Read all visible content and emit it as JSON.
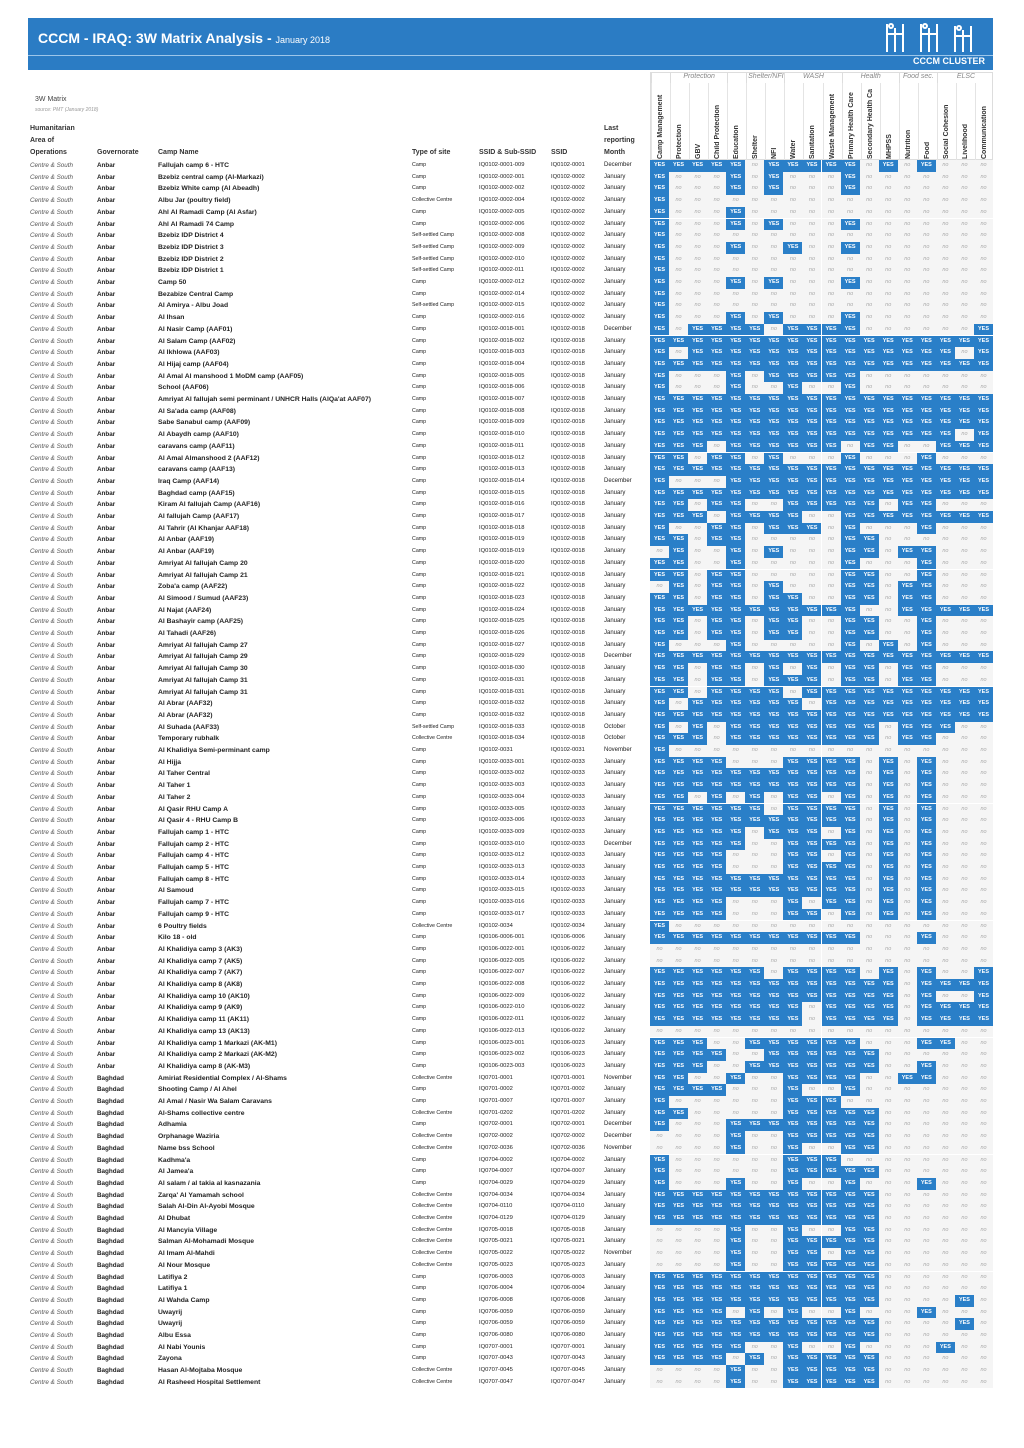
{
  "header": {
    "title": "CCCM - IRAQ: 3W Matrix Analysis - ",
    "period": "January 2018",
    "logo_text": "CCCM CLUSTER",
    "accent": "#2b7cc4"
  },
  "intro": {
    "label": "3W Matrix",
    "source": "source: PMT (January 2018)"
  },
  "columns": {
    "area_1": "Humanitarian",
    "area_2": "Area of",
    "area_3": "Operations",
    "governorate": "Governorate",
    "camp": "Camp Name",
    "type": "Type of site",
    "ssid_sub": "SSID & Sub-SSID",
    "ssid": "SSID",
    "month_1": "Last",
    "month_2": "reporting",
    "month_3": "Month"
  },
  "groups": [
    {
      "label": "",
      "span": 1
    },
    {
      "label": "Protection",
      "span": 3
    },
    {
      "label": "",
      "span": 1
    },
    {
      "label": "Shelter/NFI",
      "span": 2
    },
    {
      "label": "WASH",
      "span": 3
    },
    {
      "label": "Health",
      "span": 3
    },
    {
      "label": "Food sec.",
      "span": 2
    },
    {
      "label": "ELSC",
      "span": 3
    }
  ],
  "sectors": [
    "Camp Management",
    "Protection",
    "GBV",
    "Child Protection",
    "Education",
    "Shelter",
    "NFI",
    "Water",
    "Sanitation",
    "Waste Management",
    "Primary Health Care",
    "Secondary Health Ca",
    "MHPSS",
    "Nutrition",
    "Food",
    "Social Cohesion",
    "Livelihood",
    "Communication"
  ],
  "labels": {
    "yes": "YES",
    "no": "no",
    "yes_color": "#2a7fc8",
    "no_color": "#f5f5f5"
  },
  "area": "Centre & South",
  "rows": [
    [
      "Anbar",
      "Fallujah camp 6 - HTC",
      "Camp",
      "IQ0102-0001-009",
      "IQ0102-0001",
      "December",
      "YYYYYnYYYYYnYnYnnn"
    ],
    [
      "Anbar",
      "Bzebiz central camp (Al-Markazi)",
      "Camp",
      "IQ0102-0002-001",
      "IQ0102-0002",
      "January",
      "YnnnYnYnnnYnnnnnnn"
    ],
    [
      "Anbar",
      "Bzebiz White camp (Al Abeadh)",
      "Camp",
      "IQ0102-0002-002",
      "IQ0102-0002",
      "January",
      "YnnnYnYnnnYnnnnnnn"
    ],
    [
      "Anbar",
      "Albu Jar (poultry field)",
      "Collective Centre",
      "IQ0102-0002-004",
      "IQ0102-0002",
      "January",
      "Ynnnnnnnnnnnnnnnnn"
    ],
    [
      "Anbar",
      "Ahl Al Ramadi Camp (Al Asfar)",
      "Camp",
      "IQ0102-0002-005",
      "IQ0102-0002",
      "January",
      "YnnnYnnnnnnnnnnnnn"
    ],
    [
      "Anbar",
      "Ahl Al Ramadi 74 Camp",
      "Camp",
      "IQ0102-0002-006",
      "IQ0102-0002",
      "January",
      "YnnnYnYnnnYnnnnnnn"
    ],
    [
      "Anbar",
      "Bzebiz IDP District 4",
      "Self-settled Camp",
      "IQ0102-0002-008",
      "IQ0102-0002",
      "January",
      "Ynnnnnnnnnnnnnnnnn"
    ],
    [
      "Anbar",
      "Bzebiz IDP District 3",
      "Self-settled Camp",
      "IQ0102-0002-009",
      "IQ0102-0002",
      "January",
      "YnnnYnnYnnYnnnnnnn"
    ],
    [
      "Anbar",
      "Bzebiz IDP District 2",
      "Self-settled Camp",
      "IQ0102-0002-010",
      "IQ0102-0002",
      "January",
      "Ynnnnnnnnnnnnnnnnn"
    ],
    [
      "Anbar",
      "Bzebiz IDP District 1",
      "Self-settled Camp",
      "IQ0102-0002-011",
      "IQ0102-0002",
      "January",
      "Ynnnnnnnnnnnnnnnnn"
    ],
    [
      "Anbar",
      "Camp 50",
      "Camp",
      "IQ0102-0002-012",
      "IQ0102-0002",
      "January",
      "YnnnYnYnnnYnnnnnnn"
    ],
    [
      "Anbar",
      "Bezabize Central Camp",
      "Camp",
      "IQ0102-0002-014",
      "IQ0102-0002",
      "January",
      "Ynnnnnnnnnnnnnnnnn"
    ],
    [
      "Anbar",
      "Al Amirya - Albu Joad",
      "Self-settled Camp",
      "IQ0102-0002-015",
      "IQ0102-0002",
      "January",
      "Ynnnnnnnnnnnnnnnnn"
    ],
    [
      "Anbar",
      "Al Ihsan",
      "Camp",
      "IQ0102-0002-016",
      "IQ0102-0002",
      "January",
      "YnnnYnYnnnYnnnnnnn"
    ],
    [
      "Anbar",
      "Al Nasir Camp (AAF01)",
      "Camp",
      "IQ0102-0018-001",
      "IQ0102-0018",
      "December",
      "YnYYYYnYYYYnnnnnnY"
    ],
    [
      "Anbar",
      "Al Salam Camp (AAF02)",
      "Camp",
      "IQ0102-0018-002",
      "IQ0102-0018",
      "January",
      "YYYYYYYYYYYYYYYYYY"
    ],
    [
      "Anbar",
      "Al Ikhlowa (AAF03)",
      "Camp",
      "IQ0102-0018-003",
      "IQ0102-0018",
      "January",
      "YnYYYYYYYYYYYYYYnY"
    ],
    [
      "Anbar",
      "Al Hijaj camp (AAF04)",
      "Camp",
      "IQ0102-0018-004",
      "IQ0102-0018",
      "January",
      "YYYYYYYYYYYYYYYYYY"
    ],
    [
      "Anbar",
      "Al Amal Al manshood 1 MoDM camp (AAF05)",
      "Camp",
      "IQ0102-0018-005",
      "IQ0102-0018",
      "January",
      "YnnnYnYYYYYnnnnnnn"
    ],
    [
      "Anbar",
      "School (AAF06)",
      "Camp",
      "IQ0102-0018-006",
      "IQ0102-0018",
      "January",
      "YnnnYnnYnnYnnnnnnn"
    ],
    [
      "Anbar",
      "Amriyat Al fallujah semi perminant / UNHCR Halls (AlQa'at AAF07)",
      "Camp",
      "IQ0102-0018-007",
      "IQ0102-0018",
      "January",
      "YYYYYYYYYYYYYYYYYY"
    ],
    [
      "Anbar",
      "Al Sa'ada camp (AAF08)",
      "Camp",
      "IQ0102-0018-008",
      "IQ0102-0018",
      "January",
      "YYYYYYYYYYYYYYYYYY"
    ],
    [
      "Anbar",
      "Sabe Sanabul camp (AAF09)",
      "Camp",
      "IQ0102-0018-009",
      "IQ0102-0018",
      "January",
      "YYYYYYYYYYYYYYYYYY"
    ],
    [
      "Anbar",
      "Al Abaydh camp (AAF10)",
      "Camp",
      "IQ0102-0018-010",
      "IQ0102-0018",
      "January",
      "YYYYYYYYYYYYYYYYnY"
    ],
    [
      "Anbar",
      "caravans camp (AAF11)",
      "Camp",
      "IQ0102-0018-011",
      "IQ0102-0018",
      "January",
      "YYYnYYYYYYnYYnnYYY"
    ],
    [
      "Anbar",
      "Al Amal Almanshood 2 (AAF12)",
      "Camp",
      "IQ0102-0018-012",
      "IQ0102-0018",
      "January",
      "YYnYYnYnnnYnnnYnnn"
    ],
    [
      "Anbar",
      "caravans camp (AAF13)",
      "Camp",
      "IQ0102-0018-013",
      "IQ0102-0018",
      "January",
      "YYYYYYYYYYYYYYYYYY"
    ],
    [
      "Anbar",
      "Iraq Camp (AAF14)",
      "Camp",
      "IQ0102-0018-014",
      "IQ0102-0018",
      "December",
      "YnnnYYYYYYYYYYYYYY"
    ],
    [
      "Anbar",
      "Baghdad camp (AAF15)",
      "Camp",
      "IQ0102-0018-015",
      "IQ0102-0018",
      "January",
      "YYYYYYYYYYYYYYYYYY"
    ],
    [
      "Anbar",
      "Kiram Al fallujah Camp (AAF16)",
      "Camp",
      "IQ0102-0018-016",
      "IQ0102-0018",
      "January",
      "YYnYYnnYYYYYnYYnnn"
    ],
    [
      "Anbar",
      "Al fallujah Camp (AAF17)",
      "Camp",
      "IQ0102-0018-017",
      "IQ0102-0018",
      "January",
      "YYYnYYYYnnYYYYYYYY"
    ],
    [
      "Anbar",
      "Al Tahrir (Al Khanjar AAF18)",
      "Camp",
      "IQ0102-0018-018",
      "IQ0102-0018",
      "January",
      "YnnYYnYYYnYnnnYnnn"
    ],
    [
      "Anbar",
      "Al Anbar (AAF19)",
      "Camp",
      "IQ0102-0018-019",
      "IQ0102-0018",
      "January",
      "YYnYYnnnnnYYnnnnnn"
    ],
    [
      "Anbar",
      "Al Anbar (AAF19)",
      "Camp",
      "IQ0102-0018-019",
      "IQ0102-0018",
      "January",
      "nYnnYnYnnnYYnYYnnn"
    ],
    [
      "Anbar",
      "Amriyat Al fallujah Camp 20",
      "Camp",
      "IQ0102-0018-020",
      "IQ0102-0018",
      "January",
      "YYnnYnnnnnYnnnYnnn"
    ],
    [
      "Anbar",
      "Amriyat Al fallujah Camp 21",
      "Camp",
      "IQ0102-0018-021",
      "IQ0102-0018",
      "January",
      "YYnYYnnnnnYYnnYnnn"
    ],
    [
      "Anbar",
      "Zoba'a camp (AAF22)",
      "Camp",
      "IQ0102-0018-022",
      "IQ0102-0018",
      "January",
      "nYnYYnYnnnYYnYYnnn"
    ],
    [
      "Anbar",
      "Al Simood / Sumud (AAF23)",
      "Camp",
      "IQ0102-0018-023",
      "IQ0102-0018",
      "January",
      "YYnYYnYYnnYYnYYnnn"
    ],
    [
      "Anbar",
      "Al Najat (AAF24)",
      "Camp",
      "IQ0102-0018-024",
      "IQ0102-0018",
      "January",
      "YYYYYYYYYYYnnYYYYY"
    ],
    [
      "Anbar",
      "Al Bashayir camp (AAF25)",
      "Camp",
      "IQ0102-0018-025",
      "IQ0102-0018",
      "January",
      "YYnYYnYYnnYYnnYnnn"
    ],
    [
      "Anbar",
      "Al Tahadi (AAF26)",
      "Camp",
      "IQ0102-0018-026",
      "IQ0102-0018",
      "January",
      "YYnYYnYYnnYYnnYnnn"
    ],
    [
      "Anbar",
      "Amriyat Al fallujah Camp 27",
      "Camp",
      "IQ0102-0018-027",
      "IQ0102-0018",
      "January",
      "YnnnYnnnnnYnYnYnnn"
    ],
    [
      "Anbar",
      "Amriyat Al fallujah Camp 29",
      "Camp",
      "IQ0102-0018-029",
      "IQ0102-0018",
      "December",
      "YYYYYYYYYYYYYYYYYY"
    ],
    [
      "Anbar",
      "Amriyat Al fallujah Camp 30",
      "Camp",
      "IQ0102-0018-030",
      "IQ0102-0018",
      "January",
      "YYnYYnYnYnYYnYYnnn"
    ],
    [
      "Anbar",
      "Amriyat Al fallujah Camp 31",
      "Camp",
      "IQ0102-0018-031",
      "IQ0102-0018",
      "January",
      "YYnYYnYYYnYYnYYnnn"
    ],
    [
      "Anbar",
      "Amriyat Al fallujah Camp 31",
      "Camp",
      "IQ0102-0018-031",
      "IQ0102-0018",
      "January",
      "YYnYYYYnYYYYYYYYYY"
    ],
    [
      "Anbar",
      "Al Abrar (AAF32)",
      "Camp",
      "IQ0102-0018-032",
      "IQ0102-0018",
      "January",
      "YnYYYYYYnYYYYYYYYY"
    ],
    [
      "Anbar",
      "Al Abrar (AAF32)",
      "Camp",
      "IQ0102-0018-032",
      "IQ0102-0018",
      "January",
      "YYYYYYYYYYYYYYYYYY"
    ],
    [
      "Anbar",
      "Al Suhada (AAF33)",
      "Self-settled Camp",
      "IQ0102-0018-033",
      "IQ0102-0018",
      "October",
      "YnYnYYYYYYYYnYYYnn"
    ],
    [
      "Anbar",
      "Temporary rubhalk",
      "Collective Centre",
      "IQ0102-0018-034",
      "IQ0102-0018",
      "October",
      "YYYnYYYYYYYYnYYnnn"
    ],
    [
      "Anbar",
      "Al Khalidiya Semi-perminant camp",
      "Camp",
      "IQ0102-0031",
      "IQ0102-0031",
      "November",
      "Ynnnnnnnnnnnnnnnnn"
    ],
    [
      "Anbar",
      "Al Hijja",
      "Camp",
      "IQ0102-0033-001",
      "IQ0102-0033",
      "January",
      "YYYYnnnYYYYnYnYnnn"
    ],
    [
      "Anbar",
      "Al Taher Central",
      "Camp",
      "IQ0102-0033-002",
      "IQ0102-0033",
      "January",
      "YYYYYYYYYYYnYnYnnn"
    ],
    [
      "Anbar",
      "Al Taher 1",
      "Camp",
      "IQ0102-0033-003",
      "IQ0102-0033",
      "January",
      "YYYYYYYYYYYnYnYnnn"
    ],
    [
      "Anbar",
      "Al Taher 2",
      "Camp",
      "IQ0102-0033-004",
      "IQ0102-0033",
      "January",
      "YYnYnYnYYnYnYnYnnn"
    ],
    [
      "Anbar",
      "Al Qasir RHU Camp A",
      "Camp",
      "IQ0102-0033-005",
      "IQ0102-0033",
      "January",
      "YYYYYYnYYYYnYnYnnn"
    ],
    [
      "Anbar",
      "Al Qasir 4 - RHU Camp B",
      "Camp",
      "IQ0102-0033-006",
      "IQ0102-0033",
      "January",
      "YYYYYYYYYYYnYnYnnn"
    ],
    [
      "Anbar",
      "Fallujah camp 1 - HTC",
      "Camp",
      "IQ0102-0033-009",
      "IQ0102-0033",
      "January",
      "YYYYYnYYYnYnYnYnnn"
    ],
    [
      "Anbar",
      "Fallujah camp 2 - HTC",
      "Camp",
      "IQ0102-0033-010",
      "IQ0102-0033",
      "December",
      "YYYYYnnYYYYnYnYnnn"
    ],
    [
      "Anbar",
      "Fallujah camp 4 - HTC",
      "Camp",
      "IQ0102-0033-012",
      "IQ0102-0033",
      "January",
      "YYYYnnnYYnYnYnYnnn"
    ],
    [
      "Anbar",
      "Fallujah camp 5 - HTC",
      "Camp",
      "IQ0102-0033-013",
      "IQ0102-0033",
      "January",
      "YYYYnnnYYYYnYnYnnn"
    ],
    [
      "Anbar",
      "Fallujah camp 8 - HTC",
      "Camp",
      "IQ0102-0033-014",
      "IQ0102-0033",
      "January",
      "YYYYYYYYYYYnYnYnnn"
    ],
    [
      "Anbar",
      "Al Samoud",
      "Camp",
      "IQ0102-0033-015",
      "IQ0102-0033",
      "January",
      "YYYYYYYYYYYnYnYnnn"
    ],
    [
      "Anbar",
      "Fallujah camp 7 - HTC",
      "Camp",
      "IQ0102-0033-016",
      "IQ0102-0033",
      "January",
      "YYYYnnnYnYYnYnYnnn"
    ],
    [
      "Anbar",
      "Fallujah camp 9 - HTC",
      "Camp",
      "IQ0102-0033-017",
      "IQ0102-0033",
      "January",
      "YYYYnnnYYnYnYnYnnn"
    ],
    [
      "Anbar",
      "6 Poultry fields",
      "Collective Centre",
      "IQ0102-0034",
      "IQ0102-0034",
      "January",
      "Ynnnnnnnnnnnnnnnnn"
    ],
    [
      "Anbar",
      "Kilo 18 - old",
      "Camp",
      "IQ0106-0006-001",
      "IQ0106-0006",
      "January",
      "YYYYYYYYYYYnnnYnnn"
    ],
    [
      "Anbar",
      "Al Khalidiya camp 3 (AK3)",
      "Camp",
      "IQ0106-0022-001",
      "IQ0106-0022",
      "January",
      "nnnnnnnnnnnnnnnnnn"
    ],
    [
      "Anbar",
      "Al Khalidiya camp 7 (AK5)",
      "Camp",
      "IQ0106-0022-005",
      "IQ0106-0022",
      "January",
      "nnnnnnnnnnnnnnnnnn"
    ],
    [
      "Anbar",
      "Al Khalidiya camp 7 (AK7)",
      "Camp",
      "IQ0106-0022-007",
      "IQ0106-0022",
      "January",
      "YYYYYYnYYYYnYnYnnY"
    ],
    [
      "Anbar",
      "Al Khalidiya camp 8 (AK8)",
      "Camp",
      "IQ0106-0022-008",
      "IQ0106-0022",
      "January",
      "YYYYYYYYYYYYYnYYYY"
    ],
    [
      "Anbar",
      "Al Khalidiya camp 10 (AK10)",
      "Camp",
      "IQ0106-0022-009",
      "IQ0106-0022",
      "January",
      "YYYYYYYYYYYYYnYnnY"
    ],
    [
      "Anbar",
      "Al Khalidiya camp 9 (AK9)",
      "Camp",
      "IQ0106-0022-010",
      "IQ0106-0022",
      "January",
      "YYYYYYYYnYYYYnYYYY"
    ],
    [
      "Anbar",
      "Al Khalidiya camp 11 (AK11)",
      "Camp",
      "IQ0106-0022-011",
      "IQ0106-0022",
      "January",
      "YYYYYYYYnYYYYnYYYY"
    ],
    [
      "Anbar",
      "Al Khalidiya camp 13 (AK13)",
      "Camp",
      "IQ0106-0022-013",
      "IQ0106-0022",
      "January",
      "nnnnnnnnnnnnnnnnnn"
    ],
    [
      "Anbar",
      "Al Khalidiya camp 1 Markazi (AK-M1)",
      "Camp",
      "IQ0106-0023-001",
      "IQ0106-0023",
      "January",
      "YYYnnYYYYYYnnnYYnn"
    ],
    [
      "Anbar",
      "Al Khalidiya camp 2 Markazi (AK-M2)",
      "Camp",
      "IQ0106-0023-002",
      "IQ0106-0023",
      "January",
      "YYYYnnYYYYYYnnnnnn"
    ],
    [
      "Anbar",
      "Al Khalidiya camp 8 (AK-M3)",
      "Camp",
      "IQ0106-0023-003",
      "IQ0106-0023",
      "January",
      "YYYnnYYYYYYYnnYnnn"
    ],
    [
      "Baghdad",
      "Amiriat Residential Complex / Al-Shams",
      "Collective Centre",
      "IQ0701-0001",
      "IQ0701-0001",
      "November",
      "YYnnYnnYYYYnnYYnnn"
    ],
    [
      "Baghdad",
      "Shooting Camp / Al Ahel",
      "Camp",
      "IQ0701-0002",
      "IQ0701-0002",
      "January",
      "YYYYnnnYnnYnnnnnnn"
    ],
    [
      "Baghdad",
      "Al Amal / Nasir Wa Salam Caravans",
      "Camp",
      "IQ0701-0007",
      "IQ0701-0007",
      "January",
      "YnnnnnnYYYnnnnnnnn"
    ],
    [
      "Baghdad",
      "Al-Shams collective centre",
      "Collective Centre",
      "IQ0701-0202",
      "IQ0701-0202",
      "January",
      "YYnnnnnYYYYYnnnnnn"
    ],
    [
      "Baghdad",
      "Adhamia",
      "Camp",
      "IQ0702-0001",
      "IQ0702-0001",
      "December",
      "YnnnYYYYYYYYnnnnnn"
    ],
    [
      "Baghdad",
      "Orphanage Waziria",
      "Collective Centre",
      "IQ0702-0002",
      "IQ0702-0002",
      "December",
      "nnnnYnnYYYYYnnnnnn"
    ],
    [
      "Baghdad",
      "Name bss School",
      "Collective Centre",
      "IQ0702-0036",
      "IQ0702-0036",
      "November",
      "nnnnYnnYnnYYnnnnnn"
    ],
    [
      "Baghdad",
      "Kadhma'a",
      "Camp",
      "IQ0704-0002",
      "IQ0704-0002",
      "January",
      "YnnnnnnYYYnnnnnnnn"
    ],
    [
      "Baghdad",
      "Al Jamea'a",
      "Camp",
      "IQ0704-0007",
      "IQ0704-0007",
      "January",
      "YnnnnnnYYYYYnnnnnn"
    ],
    [
      "Baghdad",
      "Al salam / al takia al kasnazania",
      "Camp",
      "IQ0704-0029",
      "IQ0704-0029",
      "January",
      "YnnnYnnYnnYnnnYnnn"
    ],
    [
      "Baghdad",
      "Zarqa' Al Yamamah school",
      "Collective Centre",
      "IQ0704-0034",
      "IQ0704-0034",
      "January",
      "YYYYYYYYYYYYnnnnnn"
    ],
    [
      "Baghdad",
      "Salah Al-Din Al-Ayobi Mosque",
      "Collective Centre",
      "IQ0704-0110",
      "IQ0704-0110",
      "January",
      "YYYYYYYYYYYYnnnnnn"
    ],
    [
      "Baghdad",
      "Al Dhubat",
      "Collective Centre",
      "IQ0704-0129",
      "IQ0704-0129",
      "January",
      "YYYYYYYYYYYYnnnnnn"
    ],
    [
      "Baghdad",
      "Al Mancyia Village",
      "Collective Centre",
      "IQ0705-0018",
      "IQ0705-0018",
      "January",
      "nnnnYnnYnnYYnnnnnn"
    ],
    [
      "Baghdad",
      "Salman Al-Mohamadi Mosque",
      "Collective Centre",
      "IQ0705-0021",
      "IQ0705-0021",
      "January",
      "nnnnYnnYYYYYnnnnnn"
    ],
    [
      "Baghdad",
      "Al Imam Al-Mahdi",
      "Collective Centre",
      "IQ0705-0022",
      "IQ0705-0022",
      "November",
      "nnnnYnnYYnYYnnnnnn"
    ],
    [
      "Baghdad",
      "Al Nour Mosque",
      "Collective Centre",
      "IQ0705-0023",
      "IQ0705-0023",
      "January",
      "nnnnYnnYYYYYnnnnnn"
    ],
    [
      "Baghdad",
      "Latifiya 2",
      "Camp",
      "IQ0706-0003",
      "IQ0706-0003",
      "January",
      "YYYYYYYYYYYYnnnnnn"
    ],
    [
      "Baghdad",
      "Latifiya 1",
      "Camp",
      "IQ0706-0004",
      "IQ0706-0004",
      "January",
      "YYYYYYYYYYYYnnnnnn"
    ],
    [
      "Baghdad",
      "Al Wahda Camp",
      "Camp",
      "IQ0706-0008",
      "IQ0706-0008",
      "January",
      "YYYYYYYYYYYYnnnnYn"
    ],
    [
      "Baghdad",
      "Uwayrij",
      "Camp",
      "IQ0706-0059",
      "IQ0706-0059",
      "January",
      "YYYYnYnYnnYnnnYnnn"
    ],
    [
      "Baghdad",
      "Uwayrij",
      "Camp",
      "IQ0706-0059",
      "IQ0706-0059",
      "January",
      "YYYYYYYYYYYYnnnnYn"
    ],
    [
      "Baghdad",
      "Albu Essa",
      "Camp",
      "IQ0706-0080",
      "IQ0706-0080",
      "January",
      "YYYYYYYYYYYYnnnnnn"
    ],
    [
      "Baghdad",
      "Al Nabi Younis",
      "Camp",
      "IQ0707-0001",
      "IQ0707-0001",
      "January",
      "YYYYYnnYnnYnnnnYnn"
    ],
    [
      "Baghdad",
      "Zayona",
      "Camp",
      "IQ0707-0043",
      "IQ0707-0043",
      "January",
      "YYYYnYnYYYYYnnnnnn"
    ],
    [
      "Baghdad",
      "Hasan Al-Mojtaba Mosque",
      "Collective Centre",
      "IQ0707-0045",
      "IQ0707-0045",
      "January",
      "nnnnYnnYYYYYnnnnnn"
    ],
    [
      "Baghdad",
      "Al Rasheed Hospital Settlement",
      "Collective Centre",
      "IQ0707-0047",
      "IQ0707-0047",
      "January",
      "nnnnYnnYYYYYnnnnnn"
    ]
  ]
}
